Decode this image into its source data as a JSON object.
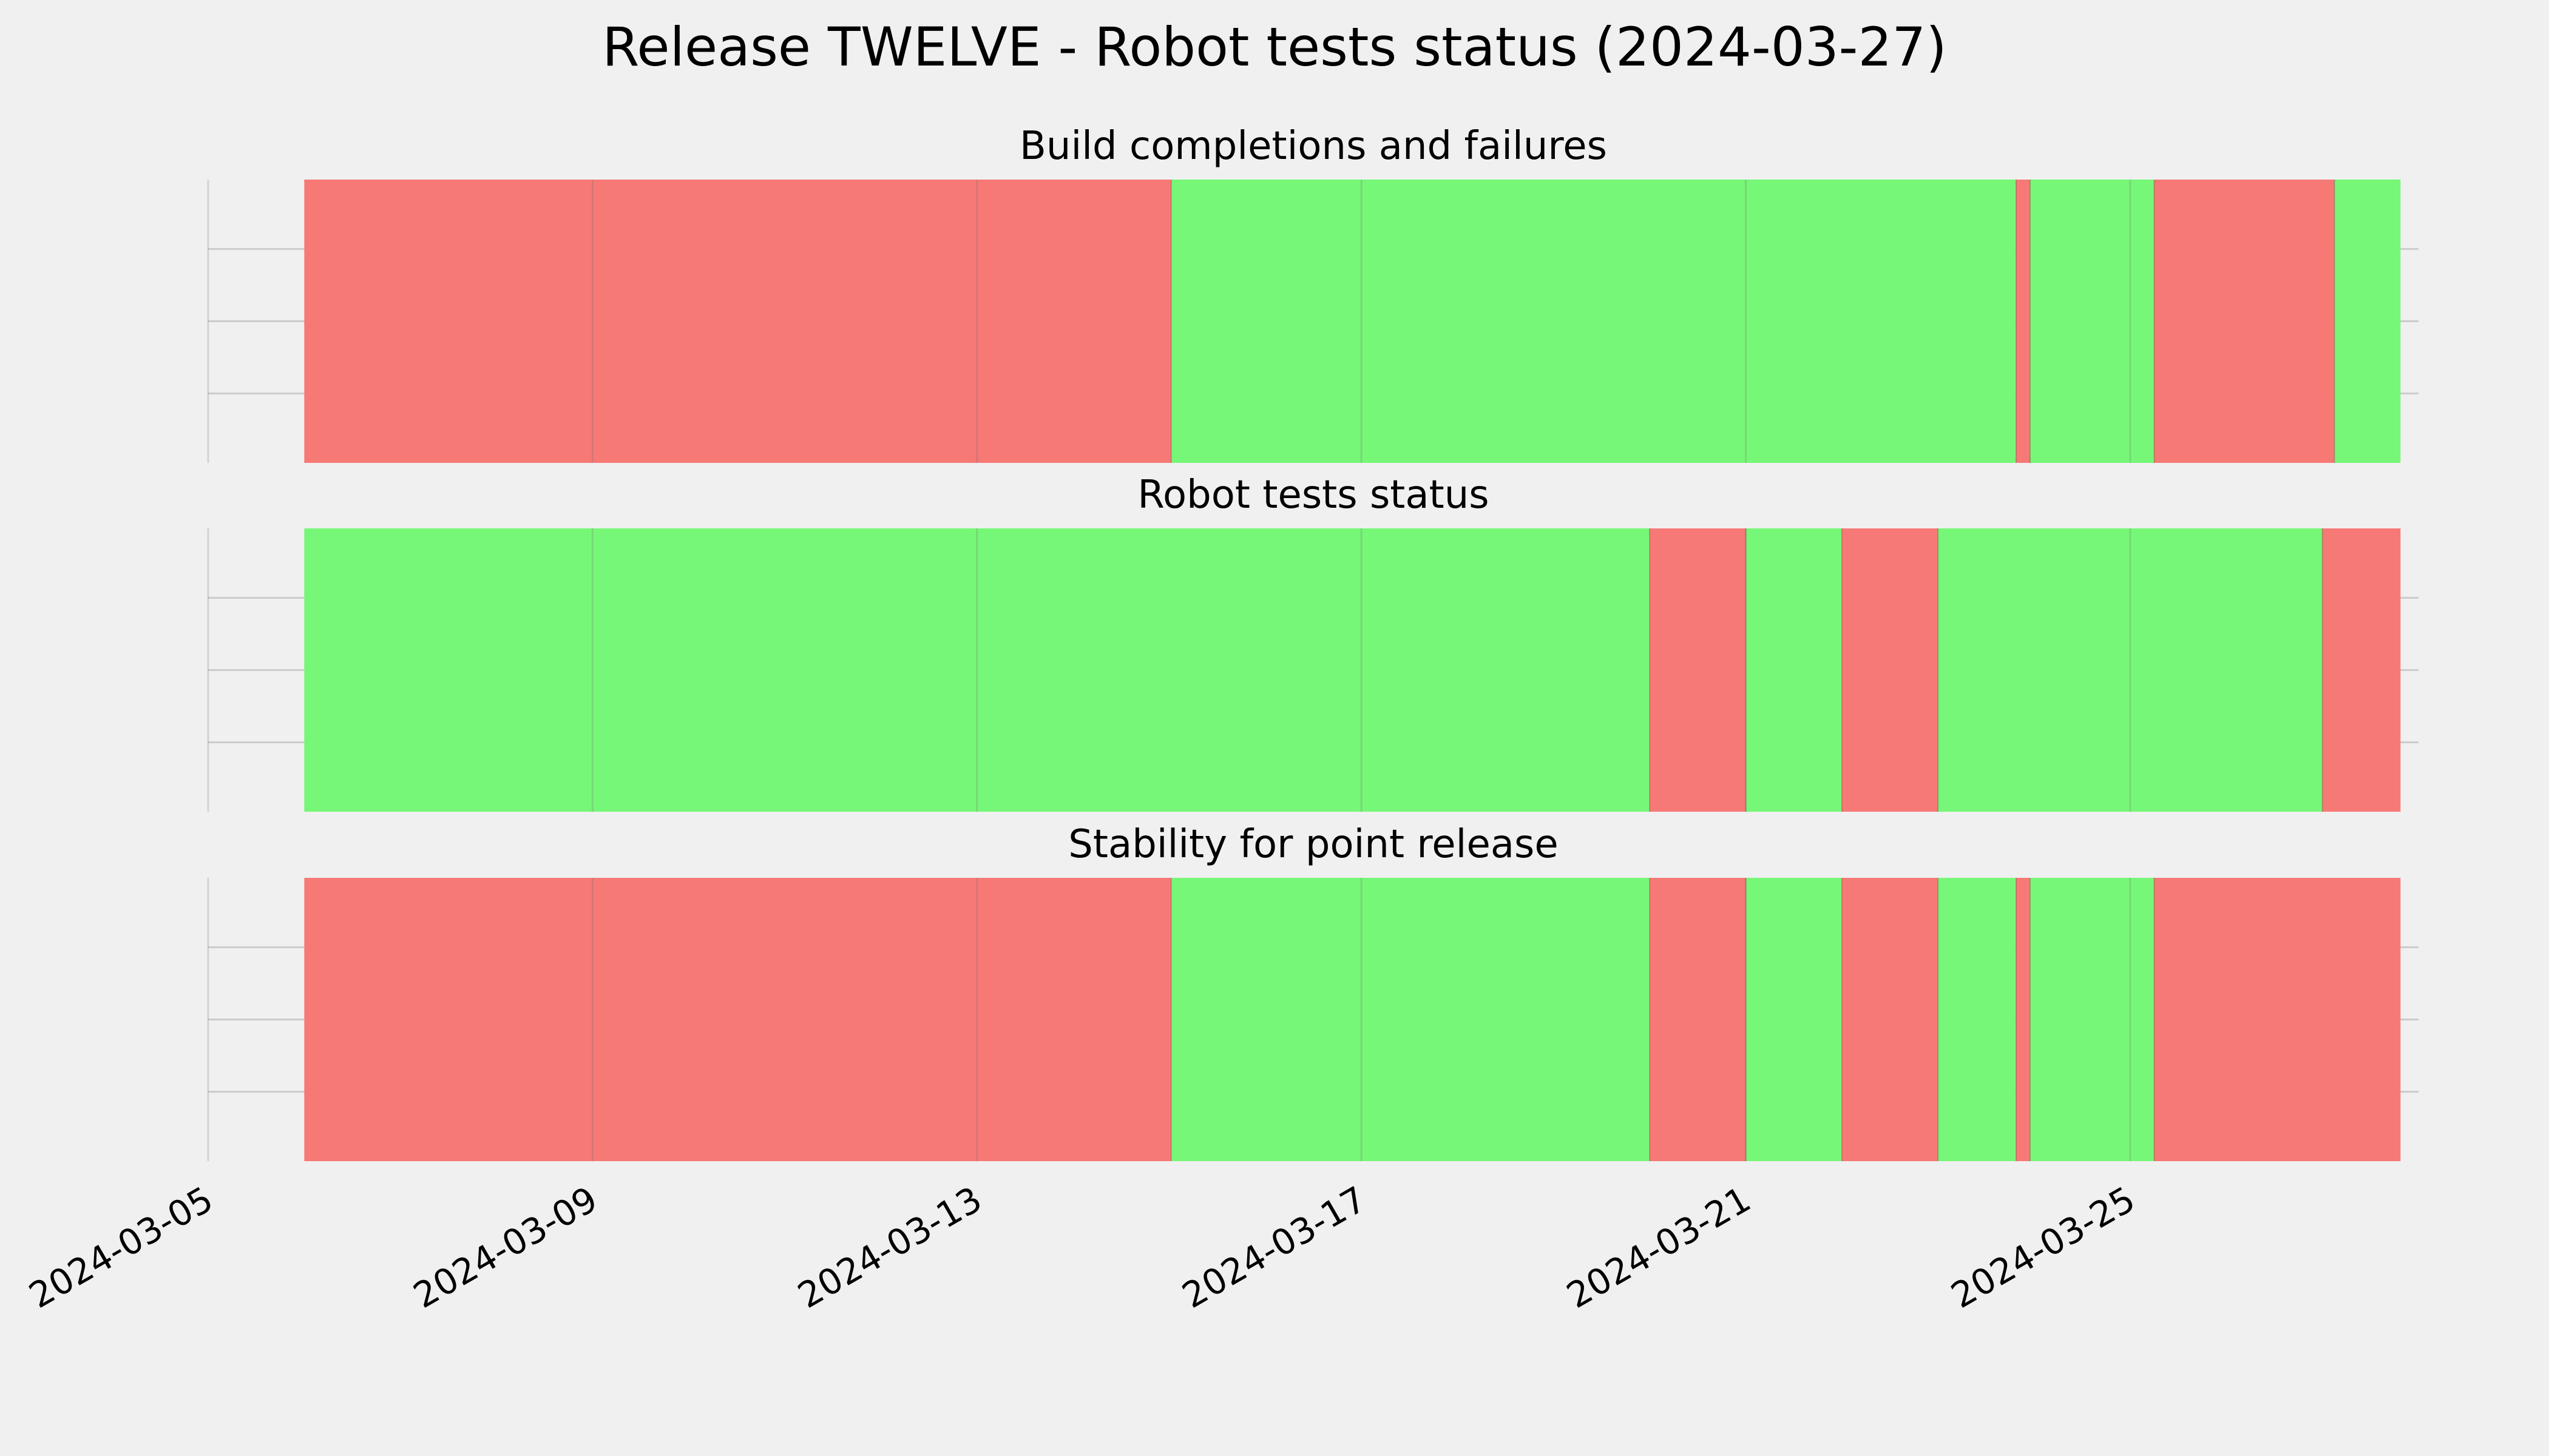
{
  "chart_data": {
    "type": "timeline",
    "title": "Release TWELVE - Robot tests status (2024-03-27)",
    "x_axis": {
      "type": "date",
      "range": [
        "2024-03-05",
        "2024-03-28T00:00"
      ],
      "ticks": [
        "2024-03-05",
        "2024-03-09",
        "2024-03-13",
        "2024-03-17",
        "2024-03-21",
        "2024-03-25"
      ]
    },
    "grid": true,
    "status_colors": {
      "fail": "#f77976",
      "pass": "#77f777"
    },
    "panels": [
      {
        "title": "Build completions and failures",
        "segments": [
          {
            "start": "2024-03-06T00:00",
            "end": "2024-03-15T00:30",
            "status": "fail"
          },
          {
            "start": "2024-03-15T00:30",
            "end": "2024-03-23T19:30",
            "status": "pass"
          },
          {
            "start": "2024-03-23T19:30",
            "end": "2024-03-23T23:00",
            "status": "fail"
          },
          {
            "start": "2024-03-23T23:00",
            "end": "2024-03-25T06:00",
            "status": "pass"
          },
          {
            "start": "2024-03-25T06:00",
            "end": "2024-03-27T03:00",
            "status": "fail"
          },
          {
            "start": "2024-03-27T03:00",
            "end": "2024-03-27T19:30",
            "status": "pass"
          }
        ]
      },
      {
        "title": "Robot tests status",
        "segments": [
          {
            "start": "2024-03-06T00:00",
            "end": "2024-03-20T00:00",
            "status": "pass"
          },
          {
            "start": "2024-03-20T00:00",
            "end": "2024-03-21T00:00",
            "status": "fail"
          },
          {
            "start": "2024-03-21T00:00",
            "end": "2024-03-22T00:00",
            "status": "pass"
          },
          {
            "start": "2024-03-22T00:00",
            "end": "2024-03-23T00:00",
            "status": "fail"
          },
          {
            "start": "2024-03-23T00:00",
            "end": "2024-03-27T00:00",
            "status": "pass"
          },
          {
            "start": "2024-03-27T00:00",
            "end": "2024-03-27T19:30",
            "status": "fail"
          }
        ]
      },
      {
        "title": "Stability for point release",
        "segments": [
          {
            "start": "2024-03-06T00:00",
            "end": "2024-03-15T00:30",
            "status": "fail"
          },
          {
            "start": "2024-03-15T00:30",
            "end": "2024-03-20T00:00",
            "status": "pass"
          },
          {
            "start": "2024-03-20T00:00",
            "end": "2024-03-21T00:00",
            "status": "fail"
          },
          {
            "start": "2024-03-21T00:00",
            "end": "2024-03-22T00:00",
            "status": "pass"
          },
          {
            "start": "2024-03-22T00:00",
            "end": "2024-03-23T00:00",
            "status": "fail"
          },
          {
            "start": "2024-03-23T00:00",
            "end": "2024-03-23T19:30",
            "status": "pass"
          },
          {
            "start": "2024-03-23T19:30",
            "end": "2024-03-23T23:00",
            "status": "fail"
          },
          {
            "start": "2024-03-23T23:00",
            "end": "2024-03-25T06:00",
            "status": "pass"
          },
          {
            "start": "2024-03-25T06:00",
            "end": "2024-03-27T19:30",
            "status": "fail"
          }
        ]
      }
    ]
  }
}
